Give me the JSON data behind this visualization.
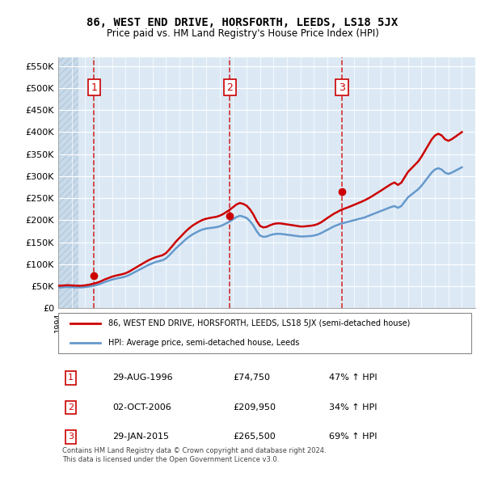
{
  "title": "86, WEST END DRIVE, HORSFORTH, LEEDS, LS18 5JX",
  "subtitle": "Price paid vs. HM Land Registry's House Price Index (HPI)",
  "ylabel_ticks": [
    "£0",
    "£50K",
    "£100K",
    "£150K",
    "£200K",
    "£250K",
    "£300K",
    "£350K",
    "£400K",
    "£450K",
    "£500K",
    "£550K"
  ],
  "ylim": [
    0,
    570000
  ],
  "xlim_start": 1994.0,
  "xlim_end": 2025.0,
  "background_color": "#dce9f5",
  "plot_bg": "#dce9f5",
  "hatch_color": "#c0d0e8",
  "grid_color": "#ffffff",
  "sale_points": [
    {
      "year": 1996.667,
      "price": 74750,
      "label": "1"
    },
    {
      "year": 2006.75,
      "price": 209950,
      "label": "2"
    },
    {
      "year": 2015.083,
      "price": 265500,
      "label": "3"
    }
  ],
  "legend_entries": [
    {
      "label": "86, WEST END DRIVE, HORSFORTH, LEEDS, LS18 5JX (semi-detached house)",
      "color": "#cc0000",
      "lw": 2
    },
    {
      "label": "HPI: Average price, semi-detached house, Leeds",
      "color": "#6699cc",
      "lw": 2
    }
  ],
  "table_rows": [
    {
      "num": "1",
      "date": "29-AUG-1996",
      "price": "£74,750",
      "change": "47% ↑ HPI"
    },
    {
      "num": "2",
      "date": "02-OCT-2006",
      "price": "£209,950",
      "change": "34% ↑ HPI"
    },
    {
      "num": "3",
      "date": "29-JAN-2015",
      "price": "£265,500",
      "change": "69% ↑ HPI"
    }
  ],
  "footnote": "Contains HM Land Registry data © Crown copyright and database right 2024.\nThis data is licensed under the Open Government Licence v3.0.",
  "hpi_data": {
    "years": [
      1994.0,
      1994.25,
      1994.5,
      1994.75,
      1995.0,
      1995.25,
      1995.5,
      1995.75,
      1996.0,
      1996.25,
      1996.5,
      1996.75,
      1997.0,
      1997.25,
      1997.5,
      1997.75,
      1998.0,
      1998.25,
      1998.5,
      1998.75,
      1999.0,
      1999.25,
      1999.5,
      1999.75,
      2000.0,
      2000.25,
      2000.5,
      2000.75,
      2001.0,
      2001.25,
      2001.5,
      2001.75,
      2002.0,
      2002.25,
      2002.5,
      2002.75,
      2003.0,
      2003.25,
      2003.5,
      2003.75,
      2004.0,
      2004.25,
      2004.5,
      2004.75,
      2005.0,
      2005.25,
      2005.5,
      2005.75,
      2006.0,
      2006.25,
      2006.5,
      2006.75,
      2007.0,
      2007.25,
      2007.5,
      2007.75,
      2008.0,
      2008.25,
      2008.5,
      2008.75,
      2009.0,
      2009.25,
      2009.5,
      2009.75,
      2010.0,
      2010.25,
      2010.5,
      2010.75,
      2011.0,
      2011.25,
      2011.5,
      2011.75,
      2012.0,
      2012.25,
      2012.5,
      2012.75,
      2013.0,
      2013.25,
      2013.5,
      2013.75,
      2014.0,
      2014.25,
      2014.5,
      2014.75,
      2015.0,
      2015.25,
      2015.5,
      2015.75,
      2016.0,
      2016.25,
      2016.5,
      2016.75,
      2017.0,
      2017.25,
      2017.5,
      2017.75,
      2018.0,
      2018.25,
      2018.5,
      2018.75,
      2019.0,
      2019.25,
      2019.5,
      2019.75,
      2020.0,
      2020.25,
      2020.5,
      2020.75,
      2021.0,
      2021.25,
      2021.5,
      2021.75,
      2022.0,
      2022.25,
      2022.5,
      2022.75,
      2023.0,
      2023.25,
      2023.5,
      2023.75,
      2024.0
    ],
    "values": [
      47000,
      47500,
      48000,
      48200,
      47800,
      47500,
      47200,
      47400,
      48000,
      49000,
      50500,
      52000,
      54000,
      57000,
      60000,
      62500,
      65000,
      67000,
      68500,
      70000,
      72000,
      75000,
      79000,
      83000,
      87000,
      91000,
      95000,
      99000,
      102000,
      105000,
      107000,
      109000,
      113000,
      120000,
      128000,
      136000,
      143000,
      150000,
      157000,
      163000,
      168000,
      172000,
      176000,
      179000,
      181000,
      182000,
      183000,
      184000,
      186000,
      189000,
      193000,
      197000,
      202000,
      207000,
      210000,
      208000,
      205000,
      198000,
      188000,
      175000,
      165000,
      162000,
      163000,
      166000,
      168000,
      169000,
      169000,
      168000,
      167000,
      166000,
      165000,
      164000,
      163000,
      163000,
      163500,
      164000,
      165000,
      167000,
      170000,
      174000,
      178000,
      182000,
      186000,
      189000,
      192000,
      194000,
      196000,
      198000,
      200000,
      202000,
      204000,
      206000,
      209000,
      212000,
      215000,
      218000,
      221000,
      224000,
      227000,
      230000,
      232000,
      228000,
      232000,
      242000,
      252000,
      258000,
      264000,
      270000,
      278000,
      288000,
      298000,
      308000,
      315000,
      318000,
      315000,
      308000,
      305000,
      308000,
      312000,
      316000,
      320000
    ]
  },
  "property_hpi_data": {
    "years": [
      1994.0,
      1994.25,
      1994.5,
      1994.75,
      1995.0,
      1995.25,
      1995.5,
      1995.75,
      1996.0,
      1996.25,
      1996.5,
      1996.75,
      1997.0,
      1997.25,
      1997.5,
      1997.75,
      1998.0,
      1998.25,
      1998.5,
      1998.75,
      1999.0,
      1999.25,
      1999.5,
      1999.75,
      2000.0,
      2000.25,
      2000.5,
      2000.75,
      2001.0,
      2001.25,
      2001.5,
      2001.75,
      2002.0,
      2002.25,
      2002.5,
      2002.75,
      2003.0,
      2003.25,
      2003.5,
      2003.75,
      2004.0,
      2004.25,
      2004.5,
      2004.75,
      2005.0,
      2005.25,
      2005.5,
      2005.75,
      2006.0,
      2006.25,
      2006.5,
      2006.75,
      2007.0,
      2007.25,
      2007.5,
      2007.75,
      2008.0,
      2008.25,
      2008.5,
      2008.75,
      2009.0,
      2009.25,
      2009.5,
      2009.75,
      2010.0,
      2010.25,
      2010.5,
      2010.75,
      2011.0,
      2011.25,
      2011.5,
      2011.75,
      2012.0,
      2012.25,
      2012.5,
      2012.75,
      2013.0,
      2013.25,
      2013.5,
      2013.75,
      2014.0,
      2014.25,
      2014.5,
      2014.75,
      2015.0,
      2015.25,
      2015.5,
      2015.75,
      2016.0,
      2016.25,
      2016.5,
      2016.75,
      2017.0,
      2017.25,
      2017.5,
      2017.75,
      2018.0,
      2018.25,
      2018.5,
      2018.75,
      2019.0,
      2019.25,
      2019.5,
      2019.75,
      2020.0,
      2020.25,
      2020.5,
      2020.75,
      2021.0,
      2021.25,
      2021.5,
      2021.75,
      2022.0,
      2022.25,
      2022.5,
      2022.75,
      2023.0,
      2023.25,
      2023.5,
      2023.75,
      2024.0
    ],
    "values": [
      50900,
      51400,
      52000,
      52300,
      51800,
      51500,
      51000,
      51300,
      52000,
      53200,
      54800,
      56700,
      59100,
      62400,
      65900,
      68700,
      71600,
      73800,
      75500,
      77200,
      79400,
      82900,
      87300,
      91900,
      96400,
      100900,
      105300,
      109600,
      113000,
      116100,
      118200,
      120400,
      124900,
      132900,
      142000,
      151300,
      159300,
      167200,
      175200,
      182000,
      187900,
      192700,
      197100,
      200800,
      203300,
      204900,
      206300,
      207600,
      210100,
      213700,
      218600,
      223700,
      229600,
      235700,
      238900,
      237000,
      232900,
      224700,
      213200,
      198300,
      187000,
      183500,
      184900,
      188500,
      191300,
      192700,
      192700,
      191600,
      190400,
      189300,
      188100,
      186900,
      185600,
      185700,
      186500,
      187300,
      188400,
      190700,
      194400,
      199400,
      204800,
      209800,
      214800,
      218700,
      223000,
      225900,
      228700,
      231700,
      234900,
      238100,
      241300,
      244700,
      248700,
      252900,
      257700,
      262500,
      267300,
      272300,
      277200,
      282100,
      285500,
      280000,
      285100,
      297400,
      309700,
      317500,
      325300,
      333100,
      344200,
      357100,
      370000,
      383000,
      392100,
      396300,
      392400,
      383700,
      380200,
      383900,
      389200,
      394600,
      400000
    ]
  }
}
